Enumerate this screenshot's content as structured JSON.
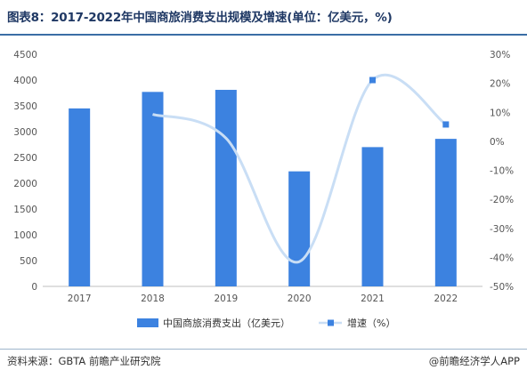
{
  "header": {
    "title": "图表8：2017-2022年中国商旅消费支出规模及增速(单位：亿美元，%)"
  },
  "footer": {
    "source": "资料来源：GBTA 前瞻产业研究院",
    "credit": "@前瞻经济学人APP"
  },
  "colors": {
    "bar": "#3c82e0",
    "line": "#c9def5",
    "marker": "#3c82e0",
    "axis": "#bfbfbf"
  },
  "chart_data": {
    "type": "bar",
    "categories": [
      "2017",
      "2018",
      "2019",
      "2020",
      "2021",
      "2022"
    ],
    "series": [
      {
        "name": "中国商旅消费支出（亿美元）",
        "type": "bar",
        "axis": "left",
        "values": [
          3450,
          3770,
          3810,
          2230,
          2700,
          2860
        ]
      },
      {
        "name": "增速（%）",
        "type": "line",
        "axis": "right",
        "values": [
          null,
          9.3,
          1.1,
          -41.5,
          21.1,
          5.8
        ]
      }
    ],
    "y_left": {
      "min": 0,
      "max": 4500,
      "step": 500,
      "ticks": [
        "0",
        "500",
        "1000",
        "1500",
        "2000",
        "2500",
        "3000",
        "3500",
        "4000",
        "4500"
      ]
    },
    "y_right": {
      "min": -50,
      "max": 30,
      "step": 10,
      "ticks": [
        "-50%",
        "-40%",
        "-30%",
        "-20%",
        "-10%",
        "0%",
        "10%",
        "20%",
        "30%"
      ]
    },
    "legend_position": "bottom-center",
    "grid": false
  }
}
